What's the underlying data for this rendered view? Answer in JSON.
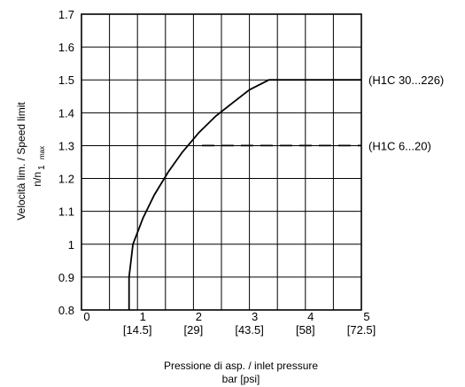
{
  "chart_data": {
    "type": "line",
    "xlabel": [
      "Pressione di asp. / inlet pressure",
      "bar [psi]"
    ],
    "ylabel": {
      "line1": "Velocità lim. / Speed limit",
      "ratio_n": "n/n",
      "ratio_sub_1": "1",
      "ratio_sub_max": "max"
    },
    "xlim": [
      0,
      5
    ],
    "ylim": [
      0.8,
      1.7
    ],
    "grid": true,
    "x_ticks": [
      {
        "value": 0,
        "label": "0",
        "psi": ""
      },
      {
        "value": 1,
        "label": "1",
        "psi": "[14.5]"
      },
      {
        "value": 2,
        "label": "2",
        "psi": "[29]"
      },
      {
        "value": 3,
        "label": "3",
        "psi": "[43.5]"
      },
      {
        "value": 4,
        "label": "4",
        "psi": "[58]"
      },
      {
        "value": 5,
        "label": "5",
        "psi": "[72.5]"
      }
    ],
    "y_ticks": [
      {
        "value": 0.8,
        "label": "0.8"
      },
      {
        "value": 0.9,
        "label": "0.9"
      },
      {
        "value": 1.0,
        "label": "1"
      },
      {
        "value": 1.1,
        "label": "1.1"
      },
      {
        "value": 1.2,
        "label": "1.2"
      },
      {
        "value": 1.3,
        "label": "1.3"
      },
      {
        "value": 1.4,
        "label": "1.4"
      },
      {
        "value": 1.5,
        "label": "1.5"
      },
      {
        "value": 1.6,
        "label": "1.6"
      },
      {
        "value": 1.7,
        "label": "1.7"
      }
    ],
    "series": [
      {
        "name": "(H1C 30...226)",
        "style": "solid",
        "points": [
          [
            0.85,
            0.8
          ],
          [
            0.85,
            0.9
          ],
          [
            0.92,
            1.0
          ],
          [
            1.1,
            1.08
          ],
          [
            1.3,
            1.15
          ],
          [
            1.55,
            1.22
          ],
          [
            1.8,
            1.28
          ],
          [
            2.1,
            1.34
          ],
          [
            2.4,
            1.39
          ],
          [
            2.7,
            1.43
          ],
          [
            3.0,
            1.47
          ],
          [
            3.35,
            1.5
          ],
          [
            5.0,
            1.5
          ]
        ]
      },
      {
        "name": "(H1C 6...20)",
        "style": "dashed",
        "points": [
          [
            2.15,
            1.3
          ],
          [
            5.0,
            1.3
          ]
        ]
      }
    ]
  }
}
